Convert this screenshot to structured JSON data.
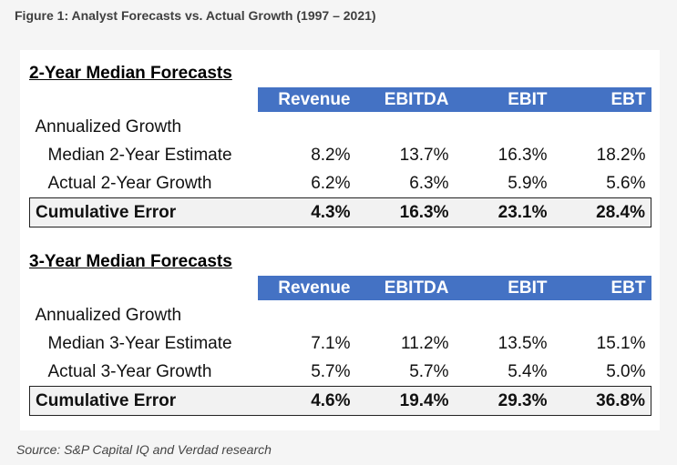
{
  "figure_title": "Figure 1: Analyst Forecasts vs. Actual Growth (1997 – 2021)",
  "source": "Source: S&P Capital IQ and Verdad research",
  "chart_data": [
    {
      "type": "table",
      "title": "2-Year Median Forecasts",
      "columns": [
        "Revenue",
        "EBITDA",
        "EBIT",
        "EBT"
      ],
      "section_label": "Annualized Growth",
      "rows": [
        {
          "label": "Median 2-Year Estimate",
          "values": [
            "8.2%",
            "13.7%",
            "16.3%",
            "18.2%"
          ]
        },
        {
          "label": "Actual 2-Year Growth",
          "values": [
            "6.2%",
            "6.3%",
            "5.9%",
            "5.6%"
          ]
        },
        {
          "label": "Cumulative Error",
          "values": [
            "4.3%",
            "16.3%",
            "23.1%",
            "28.4%"
          ]
        }
      ]
    },
    {
      "type": "table",
      "title": "3-Year Median Forecasts",
      "columns": [
        "Revenue",
        "EBITDA",
        "EBIT",
        "EBT"
      ],
      "section_label": "Annualized Growth",
      "rows": [
        {
          "label": "Median 3-Year Estimate",
          "values": [
            "7.1%",
            "11.2%",
            "13.5%",
            "15.1%"
          ]
        },
        {
          "label": "Actual 3-Year Growth",
          "values": [
            "5.7%",
            "5.7%",
            "5.4%",
            "5.0%"
          ]
        },
        {
          "label": "Cumulative Error",
          "values": [
            "4.6%",
            "19.4%",
            "29.3%",
            "36.8%"
          ]
        }
      ]
    }
  ],
  "colors": {
    "header_bg": "#4472c4",
    "header_text": "#ffffff"
  }
}
